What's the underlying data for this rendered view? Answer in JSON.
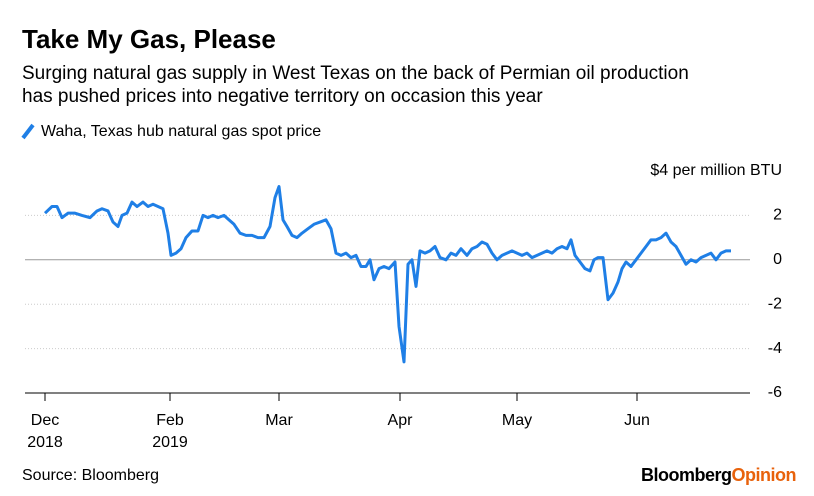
{
  "chart_data": {
    "type": "line",
    "title": "Take My Gas, Please",
    "subtitle": [
      "Surging natural gas supply in West Texas on the back of Permian oil production",
      "has pushed prices into negative territory on occasion this year"
    ],
    "source": "Source: Bloomberg",
    "brand": [
      "Bloomberg",
      "Opinion"
    ],
    "x": [
      0,
      3.5,
      6,
      8.5,
      11.5,
      15,
      18.5,
      22.5,
      26,
      28.5,
      31.5,
      34,
      36.5,
      38.5,
      41,
      43.5,
      46,
      49,
      51.5,
      54,
      56.5,
      59,
      61.5,
      63,
      65.5,
      68,
      70.5,
      73.5,
      76.5,
      79,
      81.5,
      84,
      86.5,
      89.5,
      92,
      94.5,
      97.5,
      100.5,
      103.5,
      106.5,
      109.5,
      112.5,
      115,
      117,
      119,
      121,
      123.5,
      126,
      128.5,
      131.5,
      134.5,
      137.5,
      140.5,
      143,
      145.5,
      148,
      150.5,
      153,
      155.5,
      158,
      160.5,
      162.5,
      164.5,
      167,
      169.5,
      172,
      175,
      177,
      179.5,
      181.5,
      183.5,
      185.5,
      187.5,
      190,
      192.5,
      195,
      197.5,
      200.5,
      203,
      205.5,
      208,
      211,
      213.5,
      216,
      218.5,
      221,
      223.5,
      226,
      228.5,
      231,
      233.5,
      236,
      238.5,
      241,
      243.5,
      246,
      248.5,
      251,
      253.5,
      256,
      258.5,
      261,
      263,
      265,
      267.5,
      270,
      272.5,
      274.5,
      276.5,
      279,
      281.5,
      284,
      286.5,
      288.5,
      290.5,
      293,
      295.5,
      298,
      300.5,
      303,
      305.5,
      308,
      310.5,
      313,
      315.5,
      318,
      320.5,
      323,
      325.5,
      328,
      330.5,
      333,
      335.5,
      338,
      340.5,
      343
    ],
    "series": [
      {
        "name": "Waha, Texas hub natural gas spot price",
        "color": "#1f7fe6",
        "values": [
          2.1,
          2.4,
          2.4,
          1.9,
          2.1,
          2.1,
          2.0,
          1.9,
          2.2,
          2.3,
          2.2,
          1.7,
          1.5,
          2.0,
          2.1,
          2.6,
          2.4,
          2.6,
          2.4,
          2.5,
          2.4,
          2.3,
          1.2,
          0.2,
          0.3,
          0.5,
          1.0,
          1.3,
          1.3,
          2.0,
          1.9,
          2.0,
          1.9,
          2.0,
          1.8,
          1.6,
          1.2,
          1.1,
          1.1,
          1.0,
          1.0,
          1.5,
          2.8,
          3.3,
          1.8,
          1.5,
          1.1,
          1.0,
          1.2,
          1.4,
          1.6,
          1.7,
          1.8,
          1.4,
          0.3,
          0.2,
          0.3,
          0.1,
          0.2,
          -0.3,
          -0.3,
          0.0,
          -0.9,
          -0.4,
          -0.3,
          -0.4,
          -0.1,
          -3.0,
          -4.6,
          -0.2,
          0.0,
          -1.2,
          0.4,
          0.3,
          0.4,
          0.6,
          0.1,
          0.0,
          0.3,
          0.2,
          0.5,
          0.2,
          0.5,
          0.6,
          0.8,
          0.7,
          0.3,
          0.0,
          0.2,
          0.3,
          0.4,
          0.3,
          0.2,
          0.3,
          0.1,
          0.2,
          0.3,
          0.4,
          0.3,
          0.5,
          0.6,
          0.5,
          0.9,
          0.2,
          -0.1,
          -0.4,
          -0.5,
          0.0,
          0.1,
          0.1,
          -1.8,
          -1.5,
          -1.0,
          -0.4,
          -0.1,
          -0.3,
          0.0,
          0.3,
          0.6,
          0.9,
          0.9,
          1.0,
          1.2,
          0.8,
          0.6,
          0.2,
          -0.2,
          0.0,
          -0.1,
          0.1,
          0.2,
          0.3,
          0.0,
          0.3,
          0.4,
          0.4
        ]
      }
    ],
    "xlim": [
      -10,
      355
    ],
    "xticks": [
      {
        "value": 0,
        "label": "Dec\n2018"
      },
      {
        "value": 62.5,
        "label": "Feb\n2019"
      },
      {
        "value": 117,
        "label": "Mar"
      },
      {
        "value": 177.5,
        "label": "Apr"
      },
      {
        "value": 236,
        "label": "May"
      },
      {
        "value": 296,
        "label": "Jun"
      }
    ],
    "ylim": [
      -6,
      4
    ],
    "yticks": [
      -6,
      -4,
      -2,
      0,
      2,
      {
        "value": 4,
        "label": "$4 per million BTU"
      }
    ],
    "grid": true
  }
}
